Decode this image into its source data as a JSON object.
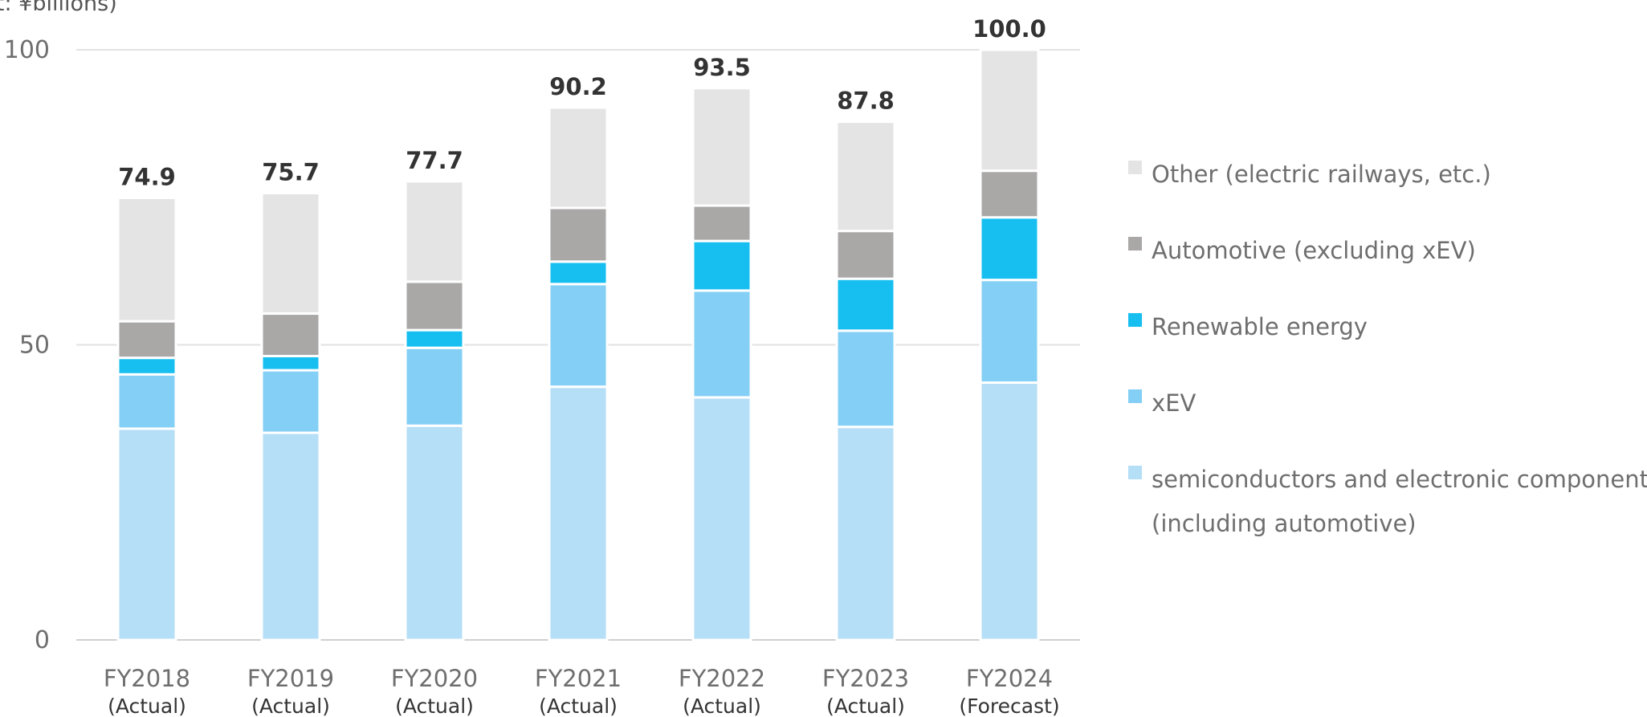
{
  "chart_data": {
    "type": "bar",
    "stacked": true,
    "unit_label": "(Unit: ¥billions)",
    "categories": [
      "FY2018",
      "FY2019",
      "FY2020",
      "FY2021",
      "FY2022",
      "FY2023",
      "FY2024"
    ],
    "category_sublabels": [
      "(Actual)",
      "(Actual)",
      "(Actual)",
      "(Actual)",
      "(Actual)",
      "(Actual)",
      "(Forecast)"
    ],
    "totals": [
      "74.9",
      "75.7",
      "77.7",
      "90.2",
      "93.5",
      "87.8",
      "100.0"
    ],
    "ylim": [
      0,
      100
    ],
    "yticks": [
      0,
      50,
      100
    ],
    "grid": true,
    "legend_position": "right",
    "series": [
      {
        "name": "semiconductors and electronic components (including automotive)",
        "color": "#b5def7",
        "values": [
          35.8,
          35.1,
          36.3,
          42.9,
          41.1,
          36.1,
          43.6
        ]
      },
      {
        "name": "xEV",
        "color": "#84cff5",
        "values": [
          9.2,
          10.6,
          13.2,
          17.4,
          18.1,
          16.3,
          17.4
        ]
      },
      {
        "name": "Renewable energy",
        "color": "#17bff1",
        "values": [
          2.8,
          2.4,
          3.0,
          3.8,
          8.4,
          8.8,
          10.6
        ]
      },
      {
        "name": "Automotive (excluding xEV)",
        "color": "#aaa7a7",
        "values": [
          6.2,
          7.2,
          8.2,
          9.1,
          6.0,
          8.1,
          7.9
        ]
      },
      {
        "name": "Other (electric railways, etc.)",
        "color": "#e4e4e4",
        "values": [
          20.9,
          20.4,
          17.0,
          17.0,
          19.9,
          18.5,
          20.5
        ]
      }
    ]
  },
  "legend": {
    "items": [
      {
        "lines": [
          "Other (electric railways, etc.)"
        ],
        "color": "#e4e4e4"
      },
      {
        "lines": [
          "Automotive (excluding xEV)"
        ],
        "color": "#aaa7a7"
      },
      {
        "lines": [
          "Renewable energy"
        ],
        "color": "#17bff1"
      },
      {
        "lines": [
          "xEV"
        ],
        "color": "#84cff5"
      },
      {
        "lines": [
          "semiconductors and electronic components",
          "(including automotive)"
        ],
        "color": "#b5def7"
      }
    ]
  }
}
